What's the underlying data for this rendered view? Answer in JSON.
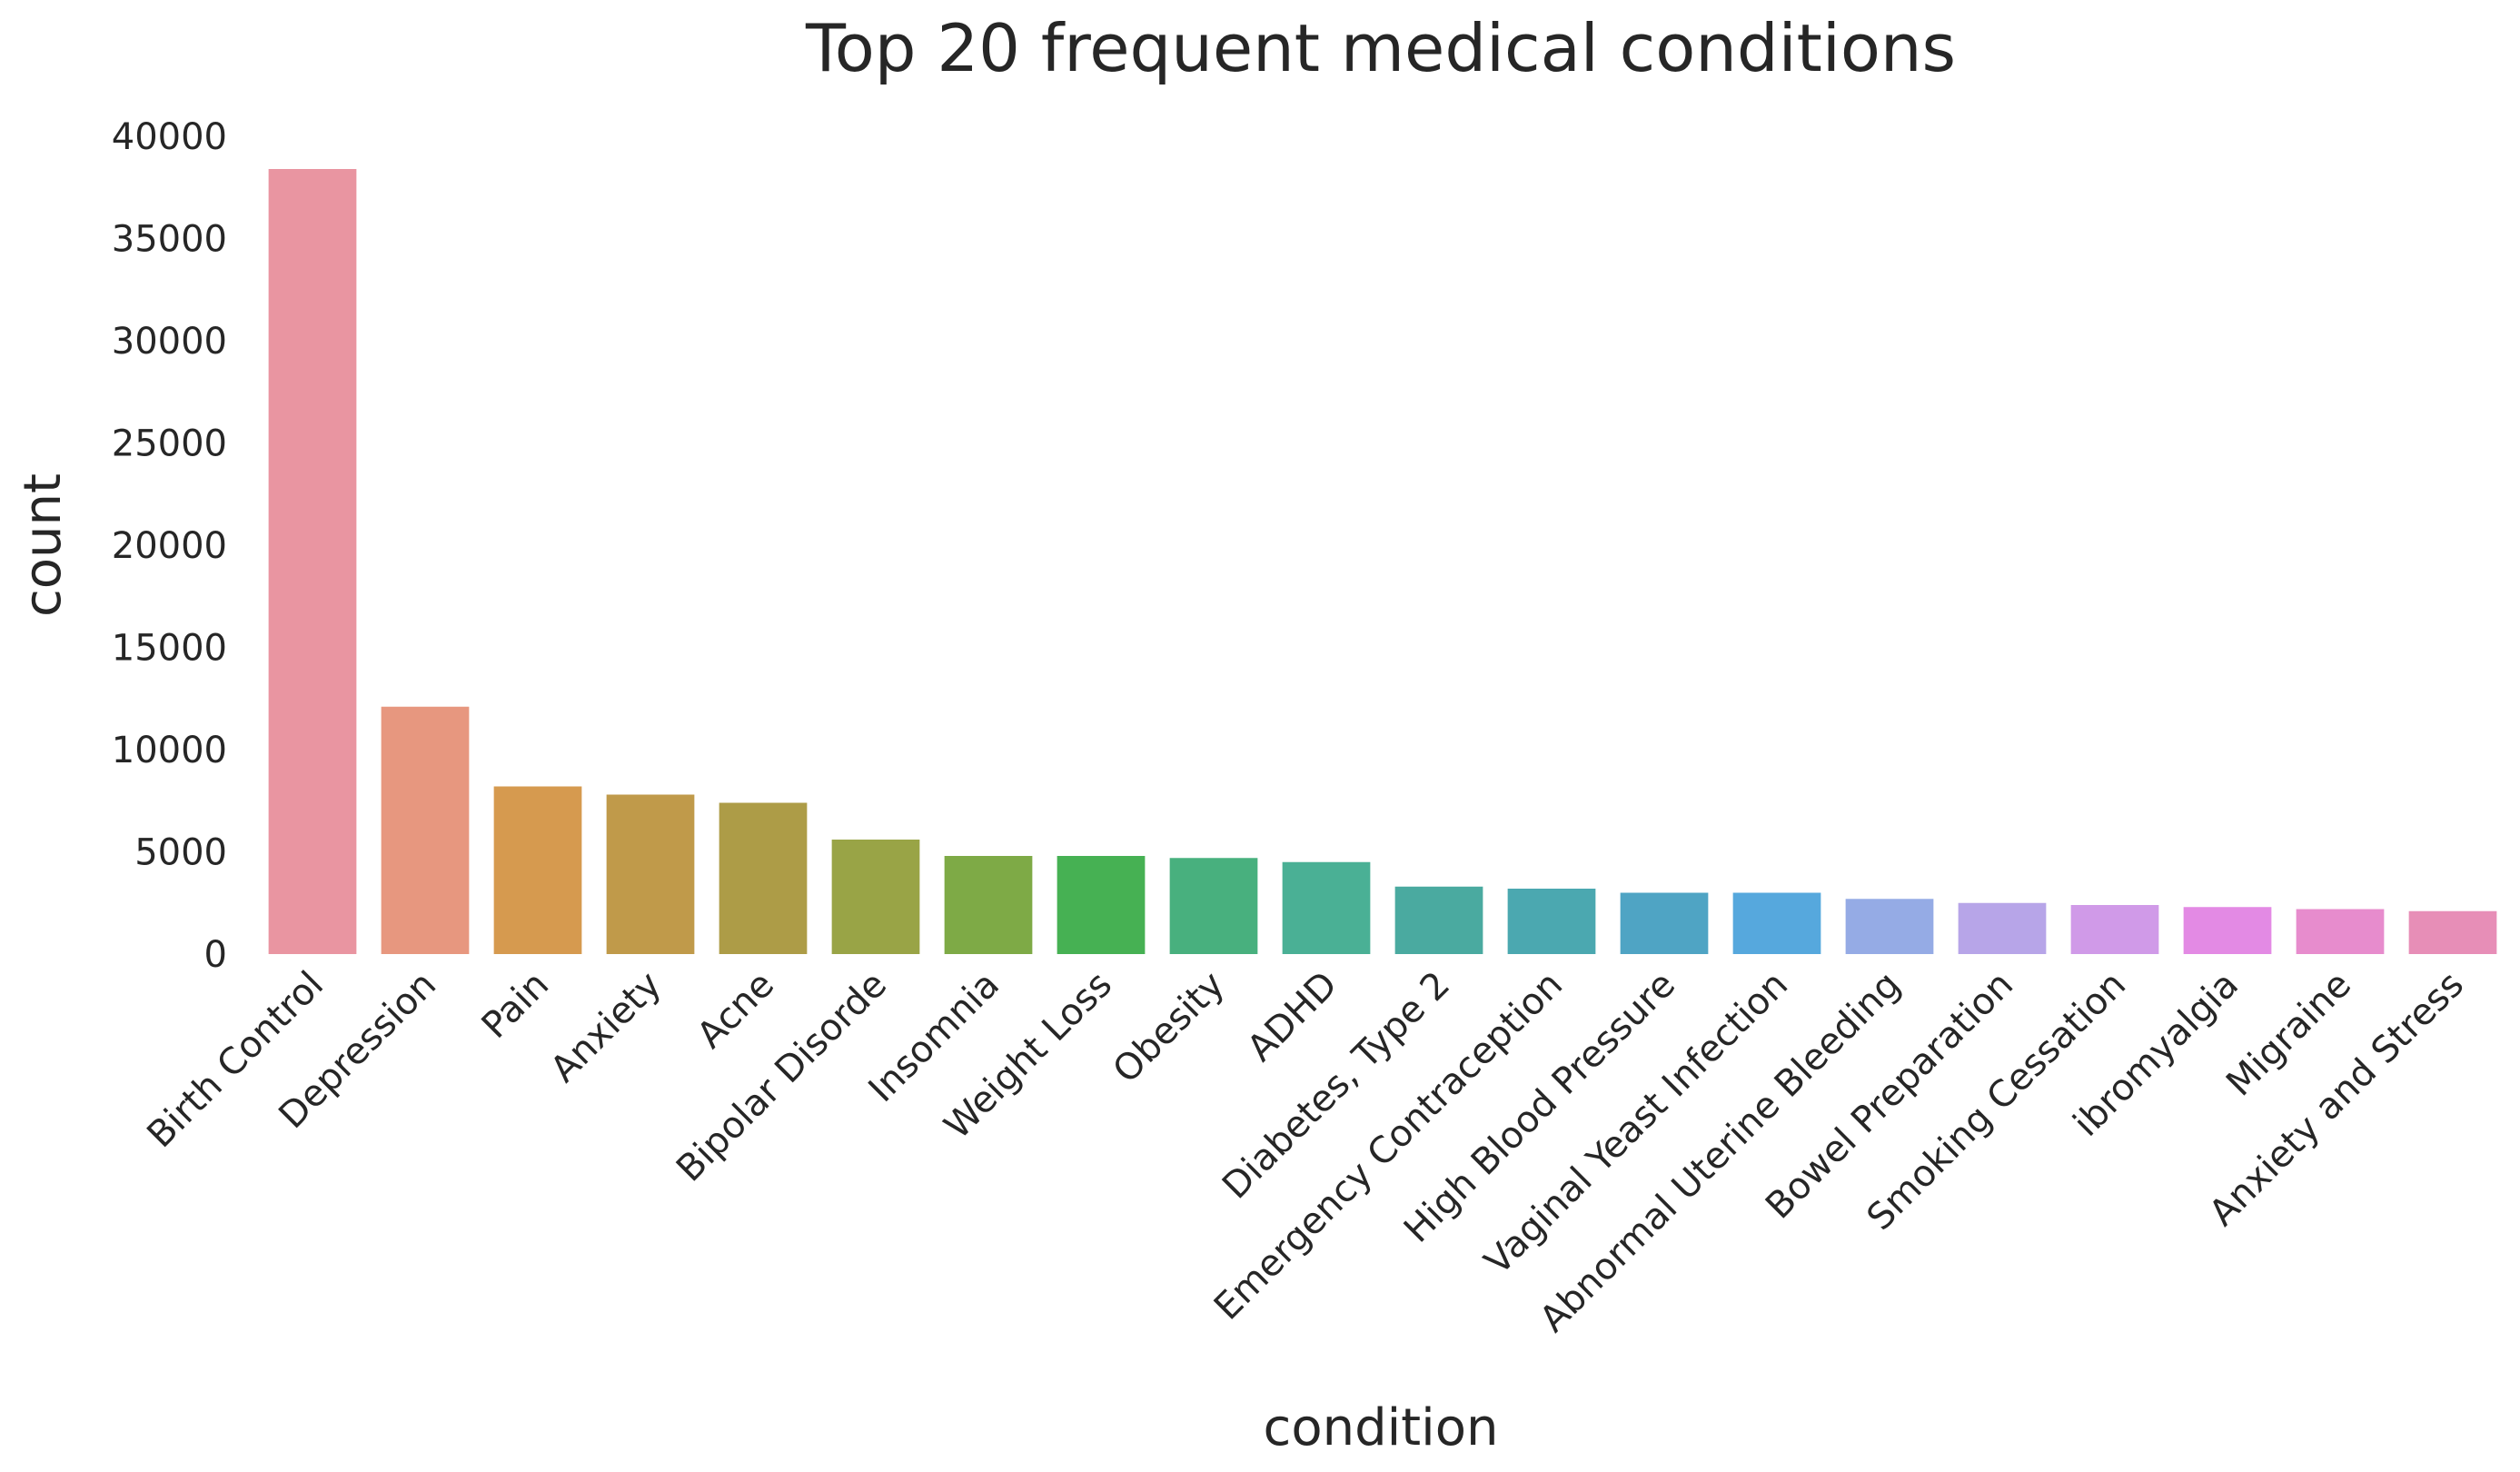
{
  "chart_data": {
    "type": "bar",
    "title": "Top 20 frequent medical conditions",
    "xlabel": "condition",
    "ylabel": "count",
    "ylim": [
      0,
      40000
    ],
    "yticks": [
      "0",
      "5000",
      "10000",
      "15000",
      "20000",
      "25000",
      "30000",
      "35000",
      "40000"
    ],
    "grid": false,
    "categories": [
      "Birth Control",
      "Depression",
      "Pain",
      "Anxiety",
      "Acne",
      "Bipolar Disorde",
      "Insomnia",
      "Weight Loss",
      "Obesity",
      "ADHD",
      "Diabetes, Type 2",
      "Emergency Contraception",
      "High Blood Pressure",
      "Vaginal Yeast Infection",
      "Abnormal Uterine Bleeding",
      "Bowel Preparation",
      "Smoking Cessation",
      "ibromyalgia",
      "Migraine",
      "Anxiety and Stress"
    ],
    "values": [
      38400,
      12100,
      8200,
      7800,
      7400,
      5600,
      4800,
      4800,
      4700,
      4500,
      3300,
      3200,
      3000,
      3000,
      2700,
      2500,
      2400,
      2300,
      2200,
      2100
    ],
    "colors": [
      "#e995a1",
      "#e7977f",
      "#d69a4f",
      "#c09a4a",
      "#ad9c47",
      "#99a446",
      "#7eaa46",
      "#46b153",
      "#48b07e",
      "#4ab095",
      "#4aaaa0",
      "#4ba8b0",
      "#4fa4c4",
      "#56a8dd",
      "#95abe5",
      "#b7a5e8",
      "#d09ae8",
      "#e38ae4",
      "#e78ccd",
      "#e78eb7"
    ]
  }
}
